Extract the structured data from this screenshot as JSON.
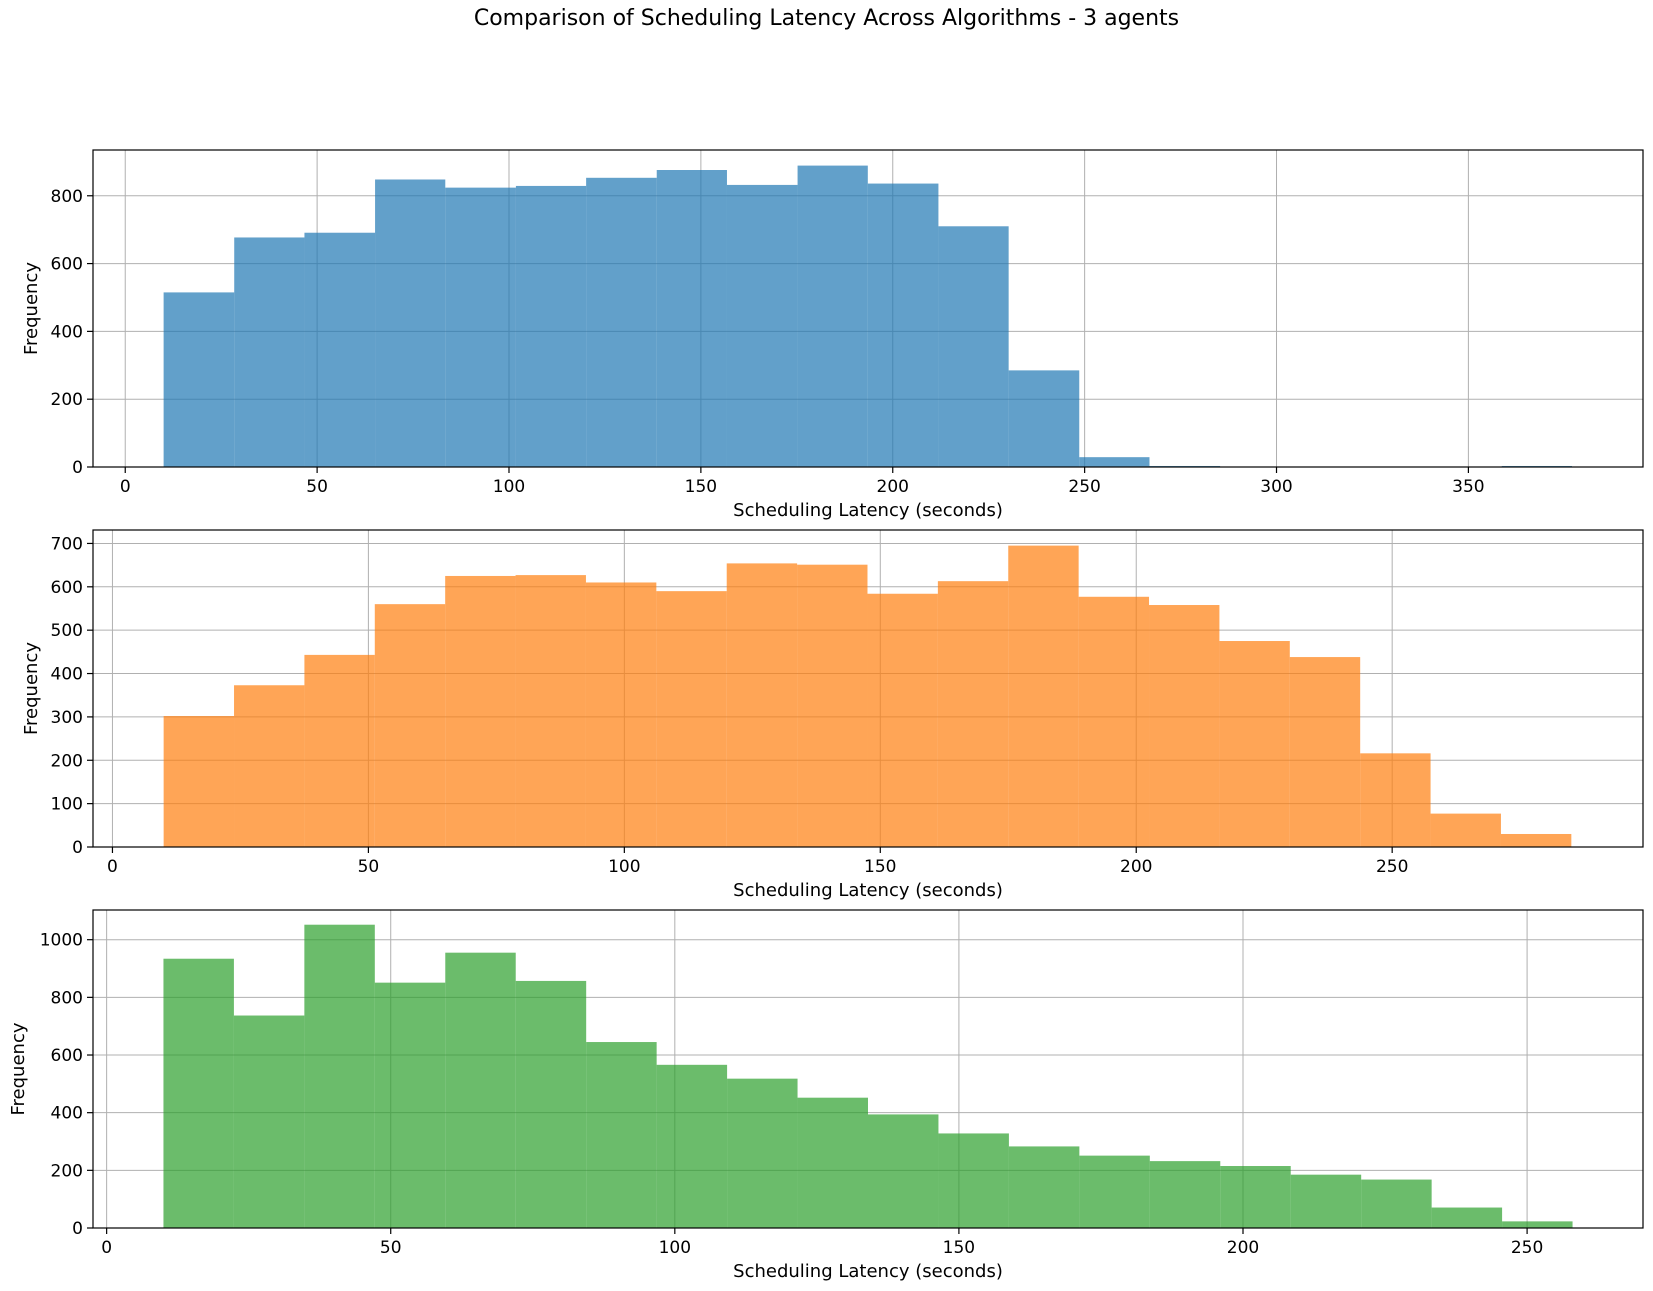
{
  "figure": {
    "title": "Comparison of Scheduling Latency Across Algorithms - 3 agents"
  },
  "chart_data": [
    {
      "type": "bar",
      "subtype": "histogram",
      "color": "#1f77b4",
      "opacity": 0.7,
      "xlabel": "Scheduling Latency (seconds)",
      "ylabel": "Frequency",
      "xlim": [
        -8.4,
        395.5
      ],
      "ylim": [
        0,
        935
      ],
      "xticks": [
        0,
        50,
        100,
        150,
        200,
        250,
        300,
        350
      ],
      "yticks": [
        0,
        200,
        400,
        600,
        800
      ],
      "grid": true,
      "bin_edges": [
        10,
        28.4,
        46.7,
        65.1,
        83.4,
        101.8,
        120.1,
        138.5,
        156.8,
        175.2,
        193.5,
        211.9,
        230.2,
        248.6,
        266.9,
        285.3,
        303.6,
        322.0,
        340.3,
        358.7,
        377.0
      ],
      "values": [
        515,
        677,
        691,
        848,
        824,
        829,
        853,
        876,
        832,
        889,
        836,
        710,
        285,
        29,
        3,
        1,
        1,
        1,
        1,
        3
      ]
    },
    {
      "type": "bar",
      "subtype": "histogram",
      "color": "#ff7f0e",
      "opacity": 0.7,
      "xlabel": "Scheduling Latency (seconds)",
      "ylabel": "Frequency",
      "xlim": [
        -3.8,
        299.0
      ],
      "ylim": [
        0,
        731
      ],
      "xticks": [
        0,
        50,
        100,
        150,
        200,
        250
      ],
      "yticks": [
        0,
        100,
        200,
        300,
        400,
        500,
        600,
        700
      ],
      "grid": true,
      "bin_edges": [
        10,
        23.75,
        37.5,
        51.25,
        65.0,
        78.75,
        92.5,
        106.25,
        120.0,
        133.75,
        147.5,
        161.25,
        175.0,
        188.75,
        202.5,
        216.25,
        230.0,
        243.75,
        257.5,
        271.25,
        285.0
      ],
      "values": [
        302,
        373,
        443,
        560,
        625,
        627,
        610,
        590,
        654,
        651,
        584,
        613,
        695,
        577,
        558,
        475,
        438,
        216,
        77,
        30
      ]
    },
    {
      "type": "bar",
      "subtype": "histogram",
      "color": "#2ca02c",
      "opacity": 0.7,
      "xlabel": "Scheduling Latency (seconds)",
      "ylabel": "Frequency",
      "xlim": [
        -2.4,
        270.4
      ],
      "ylim": [
        0,
        1103
      ],
      "xticks": [
        0,
        50,
        100,
        150,
        200,
        250
      ],
      "yticks": [
        0,
        200,
        400,
        600,
        800,
        1000
      ],
      "grid": true,
      "bin_edges": [
        10,
        22.4,
        34.8,
        47.2,
        59.6,
        72.0,
        84.4,
        96.8,
        109.2,
        121.6,
        134.0,
        146.4,
        158.8,
        171.2,
        183.6,
        196.0,
        208.4,
        220.8,
        233.2,
        245.6,
        258.0
      ],
      "values": [
        934,
        737,
        1052,
        851,
        955,
        857,
        645,
        566,
        518,
        452,
        394,
        328,
        283,
        251,
        232,
        215,
        185,
        168,
        71,
        23
      ]
    }
  ]
}
